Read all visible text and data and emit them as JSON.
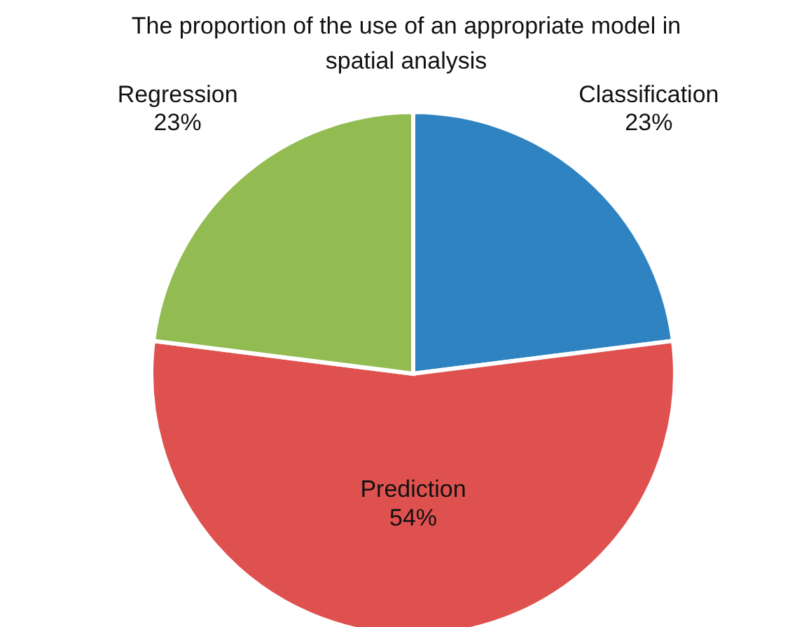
{
  "chart_data": {
    "type": "pie",
    "title": "The proportion of the use of an appropriate model in spatial analysis",
    "categories": [
      "Classification",
      "Prediction",
      "Regression"
    ],
    "values": [
      23,
      54,
      23
    ],
    "colors": [
      "#2e83c0",
      "#df514f",
      "#92bb51"
    ],
    "value_labels": [
      "23%",
      "54%",
      "23%"
    ],
    "legend": false
  }
}
